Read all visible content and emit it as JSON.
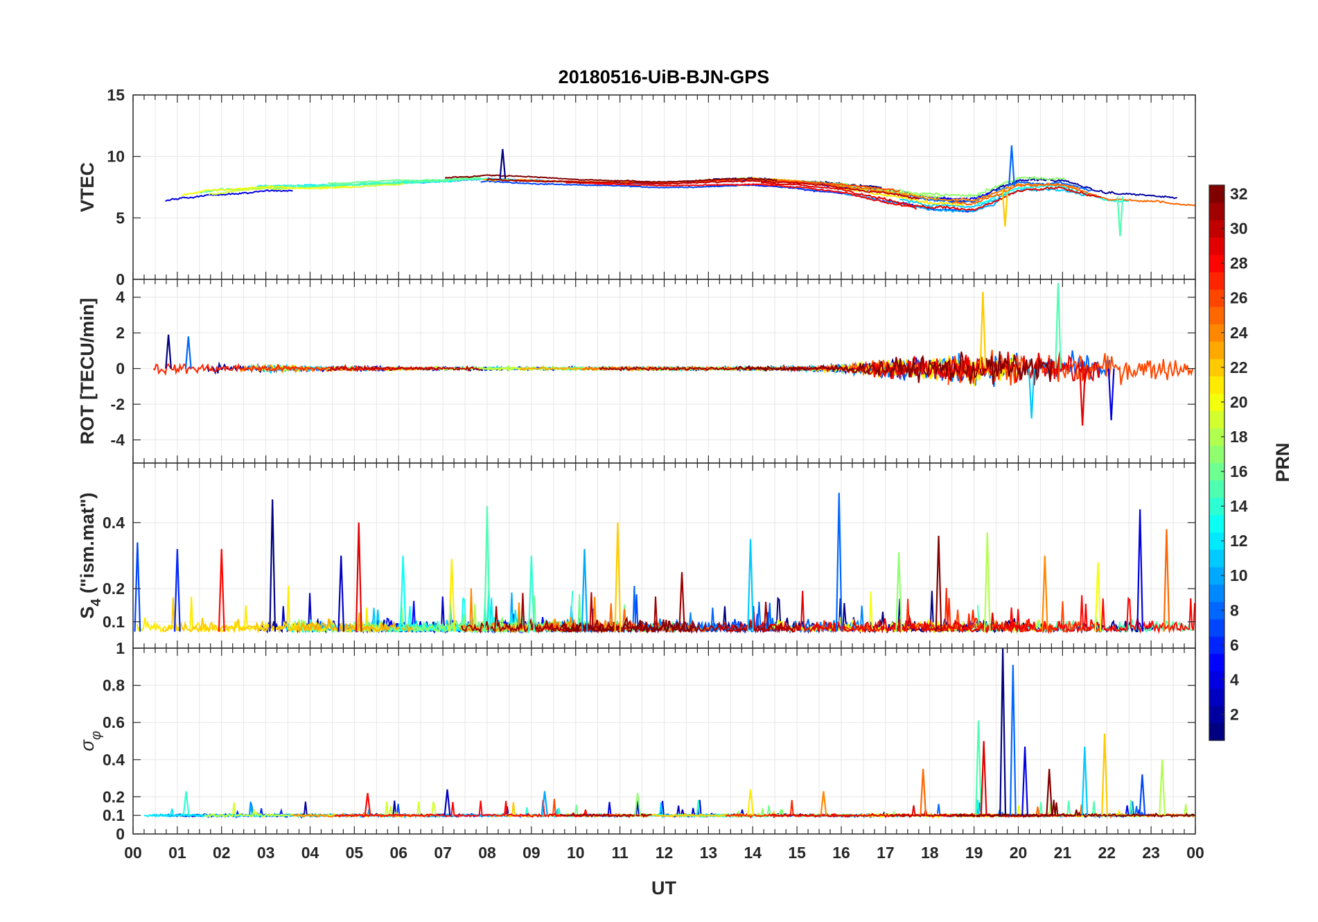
{
  "chart_data": {
    "type": "line",
    "title": "20180516-UiB-BJN-GPS",
    "xlabel": "UT",
    "x_range": [
      0,
      24
    ],
    "x_tick_labels": [
      "00",
      "01",
      "02",
      "03",
      "04",
      "05",
      "06",
      "07",
      "08",
      "09",
      "10",
      "11",
      "12",
      "13",
      "14",
      "15",
      "16",
      "17",
      "18",
      "19",
      "20",
      "21",
      "22",
      "23",
      "00"
    ],
    "colorbar": {
      "label": "PRN",
      "range": [
        1,
        32
      ],
      "tick_values": [
        2,
        4,
        6,
        8,
        10,
        12,
        14,
        16,
        18,
        20,
        22,
        24,
        26,
        28,
        30,
        32
      ],
      "tick_labels": [
        "2",
        "4",
        "6",
        "8",
        "10",
        "12",
        "14",
        "16",
        "18",
        "20",
        "22",
        "24",
        "26",
        "28",
        "30",
        "32"
      ],
      "colormap": "jet"
    },
    "panels": [
      {
        "id": "vtec",
        "ylabel": "VTEC",
        "ylim": [
          0,
          15
        ],
        "y_ticks": [
          0,
          5,
          10,
          15
        ],
        "y_tick_labels": [
          "0",
          "5",
          "10",
          "15"
        ],
        "description_points": "hourly approximate envelope",
        "baseline_by_hour": [
          6.2,
          6.8,
          7.3,
          7.6,
          7.6,
          7.7,
          7.9,
          8.0,
          8.2,
          8.1,
          8.0,
          7.9,
          7.8,
          7.9,
          8.0,
          7.8,
          7.5,
          7.0,
          6.5,
          6.3,
          7.8,
          7.8,
          6.8,
          6.6,
          6.2
        ],
        "spread_by_hour": [
          0.8,
          1.0,
          1.1,
          0.9,
          0.8,
          0.7,
          0.7,
          0.6,
          0.7,
          0.6,
          0.5,
          0.5,
          0.5,
          0.6,
          0.6,
          0.6,
          0.8,
          1.2,
          1.4,
          1.3,
          1.5,
          1.2,
          1.1,
          0.9,
          0.8
        ],
        "spikes": [
          {
            "x": 8.35,
            "y": 10.6
          },
          {
            "x": 19.85,
            "y": 10.9
          },
          {
            "x": 22.3,
            "y": 3.5
          },
          {
            "x": 19.7,
            "y": 4.3
          }
        ]
      },
      {
        "id": "rot",
        "ylabel": "ROT [TECU/min]",
        "ylim": [
          -5.3,
          5
        ],
        "y_ticks": [
          -4,
          -2,
          0,
          2,
          4
        ],
        "y_tick_labels": [
          "-4",
          "-2",
          "0",
          "2",
          "4"
        ],
        "noise_by_hour": [
          0.35,
          0.3,
          0.25,
          0.2,
          0.15,
          0.12,
          0.1,
          0.1,
          0.1,
          0.1,
          0.1,
          0.1,
          0.1,
          0.1,
          0.1,
          0.12,
          0.2,
          0.55,
          0.7,
          0.85,
          0.95,
          0.9,
          0.85,
          0.7,
          0.5
        ],
        "spikes": [
          {
            "x": 0.8,
            "y": 1.9
          },
          {
            "x": 1.25,
            "y": 1.8
          },
          {
            "x": 20.9,
            "y": 4.8
          },
          {
            "x": 19.2,
            "y": 4.3
          },
          {
            "x": 21.45,
            "y": -3.2
          },
          {
            "x": 22.1,
            "y": -2.9
          },
          {
            "x": 20.3,
            "y": -2.8
          }
        ]
      },
      {
        "id": "s4",
        "ylabel_main": "S",
        "ylabel_sub": "4",
        "ylabel_rest": " (\"ism.mat\")",
        "ylim": [
          0.02,
          0.58
        ],
        "y_ticks": [
          0.1,
          0.2,
          0.4
        ],
        "y_tick_labels": [
          "0.1",
          "0.2",
          "0.4"
        ],
        "background_level": 0.07,
        "spikes": [
          {
            "x": 3.15,
            "y": 0.47
          },
          {
            "x": 15.95,
            "y": 0.49
          },
          {
            "x": 8.0,
            "y": 0.45
          },
          {
            "x": 10.95,
            "y": 0.4
          },
          {
            "x": 5.1,
            "y": 0.4
          },
          {
            "x": 22.75,
            "y": 0.44
          },
          {
            "x": 13.95,
            "y": 0.35
          },
          {
            "x": 19.3,
            "y": 0.37
          },
          {
            "x": 23.35,
            "y": 0.38
          },
          {
            "x": 18.2,
            "y": 0.36
          },
          {
            "x": 0.1,
            "y": 0.34
          },
          {
            "x": 9.0,
            "y": 0.3
          },
          {
            "x": 7.2,
            "y": 0.29
          },
          {
            "x": 2.0,
            "y": 0.32
          },
          {
            "x": 4.7,
            "y": 0.3
          },
          {
            "x": 10.2,
            "y": 0.32
          },
          {
            "x": 17.3,
            "y": 0.31
          },
          {
            "x": 20.6,
            "y": 0.3
          },
          {
            "x": 12.4,
            "y": 0.25
          },
          {
            "x": 1.0,
            "y": 0.32
          },
          {
            "x": 6.1,
            "y": 0.3
          },
          {
            "x": 21.8,
            "y": 0.28
          }
        ]
      },
      {
        "id": "sigma_phi",
        "ylabel_main": "σ",
        "ylabel_sub": "φ",
        "ylim": [
          0,
          1
        ],
        "y_ticks": [
          0,
          0.1,
          0.2,
          0.4,
          0.6,
          0.8,
          1
        ],
        "y_tick_labels": [
          "0",
          "0.1",
          "0.2",
          "0.4",
          "0.6",
          "0.8",
          "1"
        ],
        "background_level": 0.1,
        "spikes": [
          {
            "x": 19.65,
            "y": 1.0
          },
          {
            "x": 19.88,
            "y": 0.91
          },
          {
            "x": 19.1,
            "y": 0.61
          },
          {
            "x": 21.95,
            "y": 0.54
          },
          {
            "x": 19.22,
            "y": 0.5
          },
          {
            "x": 20.15,
            "y": 0.47
          },
          {
            "x": 21.5,
            "y": 0.47
          },
          {
            "x": 23.25,
            "y": 0.4
          },
          {
            "x": 17.85,
            "y": 0.35
          },
          {
            "x": 20.7,
            "y": 0.35
          },
          {
            "x": 22.8,
            "y": 0.32
          },
          {
            "x": 1.2,
            "y": 0.23
          },
          {
            "x": 13.95,
            "y": 0.24
          },
          {
            "x": 5.3,
            "y": 0.22
          },
          {
            "x": 7.1,
            "y": 0.24
          },
          {
            "x": 9.3,
            "y": 0.23
          },
          {
            "x": 11.4,
            "y": 0.22
          },
          {
            "x": 15.6,
            "y": 0.23
          }
        ]
      }
    ]
  }
}
